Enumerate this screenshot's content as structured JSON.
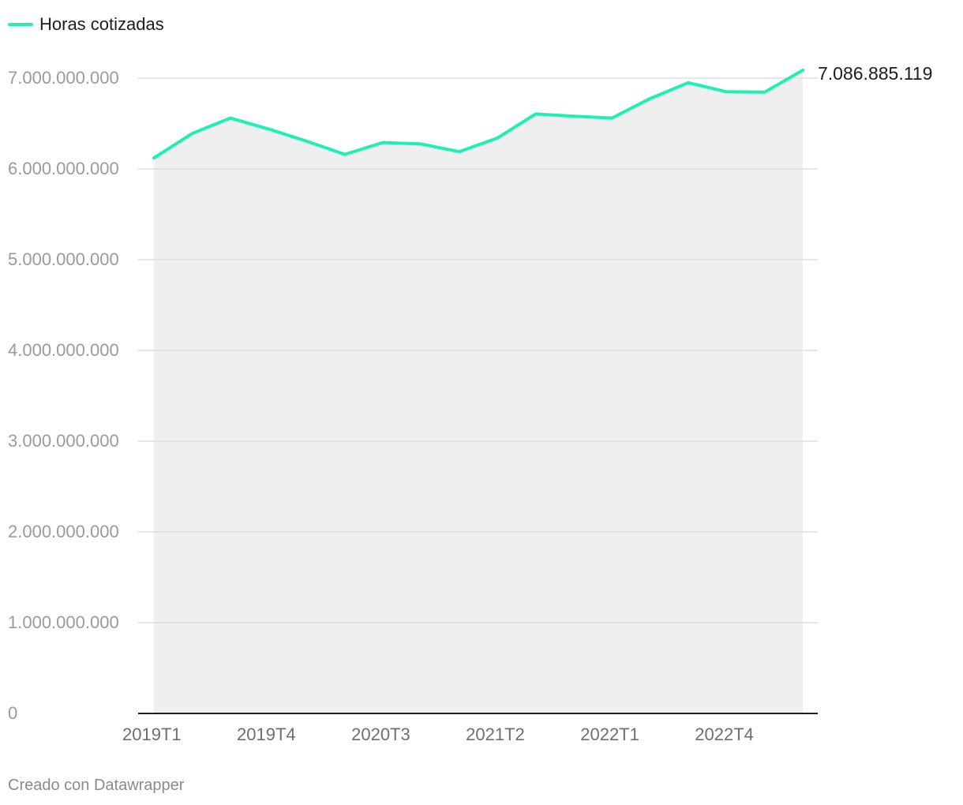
{
  "legend": {
    "label": "Horas cotizadas"
  },
  "footer": {
    "credit": "Creado con Datawrapper"
  },
  "colors": {
    "line": "#1ef0b4",
    "area": "#efefef",
    "grid": "#dddddd",
    "axis": "#1d1d1d",
    "tick_text": "#9a9a9a",
    "x_tick_text": "#6e6e6e"
  },
  "chart_data": {
    "type": "area",
    "x": [
      "2019T1",
      "2019T2",
      "2019T3",
      "2019T4",
      "2020T1",
      "2020T2",
      "2020T3",
      "2020T4",
      "2021T1",
      "2021T2",
      "2021T3",
      "2021T4",
      "2022T1",
      "2022T2",
      "2022T3",
      "2022T4",
      "2023T1",
      "2023T2"
    ],
    "series": [
      {
        "name": "Horas cotizadas",
        "values": [
          6120000000,
          6390000000,
          6560000000,
          6440000000,
          6305000000,
          6160000000,
          6290000000,
          6275000000,
          6190000000,
          6340000000,
          6605000000,
          6580000000,
          6560000000,
          6775000000,
          6950000000,
          6850000000,
          6845000000,
          7086885119
        ]
      }
    ],
    "x_tick_labels": [
      "2019T1",
      "2019T4",
      "2020T3",
      "2021T2",
      "2022T1",
      "2022T4"
    ],
    "y_ticks": [
      {
        "value": 0,
        "label": "0"
      },
      {
        "value": 1000000000,
        "label": "1.000.000.000"
      },
      {
        "value": 2000000000,
        "label": "2.000.000.000"
      },
      {
        "value": 3000000000,
        "label": "3.000.000.000"
      },
      {
        "value": 4000000000,
        "label": "4.000.000.000"
      },
      {
        "value": 5000000000,
        "label": "5.000.000.000"
      },
      {
        "value": 6000000000,
        "label": "6.000.000.000"
      },
      {
        "value": 7000000000,
        "label": "7.000.000.000"
      }
    ],
    "ylim": [
      0,
      7000000000
    ],
    "end_label": "7.086.885.119",
    "grid": true,
    "legend_position": "top-left"
  }
}
